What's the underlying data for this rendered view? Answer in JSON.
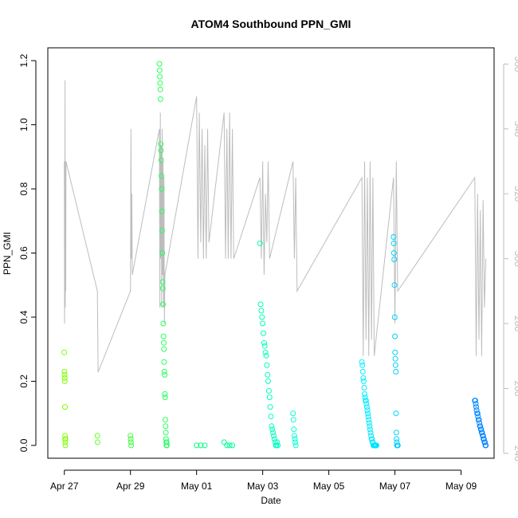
{
  "chart_data": {
    "type": "scatter",
    "title": "ATOM4 Southbound PPN_GMI",
    "xlabel": "Date",
    "ylabel": "PPN_GMI",
    "x_ticks": [
      "Apr 27",
      "Apr 29",
      "May 01",
      "May 03",
      "May 05",
      "May 07",
      "May 09"
    ],
    "y_ticks": [
      "0.0",
      "0.2",
      "0.4",
      "0.6",
      "0.8",
      "1.0",
      "1.2"
    ],
    "y2_ticks": [
      "240",
      "260",
      "280",
      "300",
      "320",
      "340",
      "360"
    ],
    "xlim": [
      "2016-04-26 12:00",
      "2016-05-10 00:00"
    ],
    "ylim": [
      -0.04,
      1.24
    ],
    "y2lim": [
      238.5,
      365
    ],
    "grid": false,
    "legend": "none",
    "colors": {
      "points_start": "#80ff00",
      "points_mid": "#00ff80",
      "points_cyan": "#00ffff",
      "points_end": "#0080ff",
      "secondary_line": "#bdbdbd"
    },
    "series": [
      {
        "kind": "points",
        "x": [
          "2016-04-27 00:00",
          "2016-04-27 00:05",
          "2016-04-27 00:10",
          "2016-04-27 00:15",
          "2016-04-27 00:20",
          "2016-04-27 00:25",
          "2016-04-27 00:30",
          "2016-04-27 00:35",
          "2016-04-27 00:40",
          "2016-04-27 00:45",
          "2016-04-27 00:50",
          "2016-04-28 00:00",
          "2016-04-28 00:10",
          "2016-04-29 00:00",
          "2016-04-29 00:10",
          "2016-04-29 00:20",
          "2016-04-29 00:30",
          "2016-04-29 21:00",
          "2016-04-29 21:10",
          "2016-04-29 21:20",
          "2016-04-29 21:30",
          "2016-04-29 21:40",
          "2016-04-29 21:50",
          "2016-04-29 22:00",
          "2016-04-29 22:10",
          "2016-04-29 22:20",
          "2016-04-29 22:30",
          "2016-04-29 22:40",
          "2016-04-29 22:50",
          "2016-04-29 23:00",
          "2016-04-29 23:10",
          "2016-04-29 23:20",
          "2016-04-29 23:30",
          "2016-04-29 23:40",
          "2016-04-29 23:50",
          "2016-04-30 00:00",
          "2016-04-30 00:10",
          "2016-04-30 00:20",
          "2016-04-30 00:30",
          "2016-04-30 00:40",
          "2016-04-30 00:50",
          "2016-04-30 01:00",
          "2016-04-30 01:10",
          "2016-04-30 01:20",
          "2016-04-30 01:30",
          "2016-04-30 01:40",
          "2016-04-30 01:50",
          "2016-04-30 02:00",
          "2016-04-30 02:10",
          "2016-04-30 02:20",
          "2016-04-30 02:30",
          "2016-05-01 00:00",
          "2016-05-01 03:00",
          "2016-05-01 06:00",
          "2016-05-01 20:00",
          "2016-05-01 22:00",
          "2016-05-02 00:00",
          "2016-05-02 02:00",
          "2016-05-02 22:00",
          "2016-05-02 22:30",
          "2016-05-02 23:00",
          "2016-05-02 23:30",
          "2016-05-03 00:00",
          "2016-05-03 00:30",
          "2016-05-03 01:00",
          "2016-05-03 01:30",
          "2016-05-03 02:00",
          "2016-05-03 02:30",
          "2016-05-03 03:00",
          "2016-05-03 03:30",
          "2016-05-03 04:00",
          "2016-05-03 04:30",
          "2016-05-03 05:00",
          "2016-05-03 05:30",
          "2016-05-03 06:00",
          "2016-05-03 06:30",
          "2016-05-03 07:00",
          "2016-05-03 07:30",
          "2016-05-03 08:00",
          "2016-05-03 08:30",
          "2016-05-03 09:00",
          "2016-05-03 09:30",
          "2016-05-03 10:00",
          "2016-05-03 10:30",
          "2016-05-03 11:00",
          "2016-05-03 22:00",
          "2016-05-03 22:20",
          "2016-05-03 22:40",
          "2016-05-03 23:00",
          "2016-05-03 23:20",
          "2016-05-03 23:40",
          "2016-05-04 00:00",
          "2016-05-06 00:00",
          "2016-05-06 00:20",
          "2016-05-06 00:40",
          "2016-05-06 01:00",
          "2016-05-06 01:20",
          "2016-05-06 01:40",
          "2016-05-06 02:00",
          "2016-05-06 02:20",
          "2016-05-06 02:40",
          "2016-05-06 03:00",
          "2016-05-06 03:20",
          "2016-05-06 03:40",
          "2016-05-06 04:00",
          "2016-05-06 04:20",
          "2016-05-06 04:40",
          "2016-05-06 05:00",
          "2016-05-06 05:20",
          "2016-05-06 05:40",
          "2016-05-06 06:00",
          "2016-05-06 06:20",
          "2016-05-06 06:40",
          "2016-05-06 07:00",
          "2016-05-06 07:20",
          "2016-05-06 07:40",
          "2016-05-06 08:00",
          "2016-05-06 08:20",
          "2016-05-06 08:40",
          "2016-05-06 09:00",
          "2016-05-06 09:20",
          "2016-05-06 09:40",
          "2016-05-06 10:00",
          "2016-05-06 10:20",
          "2016-05-06 10:40",
          "2016-05-06 23:00",
          "2016-05-06 23:10",
          "2016-05-06 23:20",
          "2016-05-06 23:30",
          "2016-05-06 23:40",
          "2016-05-06 23:50",
          "2016-05-07 00:00",
          "2016-05-07 00:10",
          "2016-05-07 00:20",
          "2016-05-07 00:30",
          "2016-05-07 00:40",
          "2016-05-07 00:50",
          "2016-05-07 01:00",
          "2016-05-07 01:10",
          "2016-05-07 01:20",
          "2016-05-07 01:30",
          "2016-05-07 01:40",
          "2016-05-07 01:50",
          "2016-05-07 02:00",
          "2016-05-07 02:10",
          "2016-05-09 10:00",
          "2016-05-09 10:20",
          "2016-05-09 10:40",
          "2016-05-09 11:00",
          "2016-05-09 11:20",
          "2016-05-09 11:40",
          "2016-05-09 12:00",
          "2016-05-09 12:20",
          "2016-05-09 12:40",
          "2016-05-09 13:00",
          "2016-05-09 13:20",
          "2016-05-09 13:40",
          "2016-05-09 14:00",
          "2016-05-09 14:20",
          "2016-05-09 14:40",
          "2016-05-09 15:00",
          "2016-05-09 15:20",
          "2016-05-09 15:40",
          "2016-05-09 16:00",
          "2016-05-09 16:20",
          "2016-05-09 16:40",
          "2016-05-09 17:00",
          "2016-05-09 17:20",
          "2016-05-09 17:40",
          "2016-05-09 18:00"
        ],
        "y": [
          0.29,
          0.23,
          0.22,
          0.21,
          0.2,
          0.12,
          0.03,
          0.02,
          0.01,
          0.0,
          0.02,
          0.03,
          0.01,
          0.03,
          0.02,
          0.01,
          0.0,
          1.19,
          1.17,
          1.15,
          1.13,
          1.11,
          1.08,
          0.94,
          0.92,
          0.89,
          0.84,
          0.8,
          0.73,
          0.67,
          0.6,
          0.51,
          0.49,
          0.44,
          0.38,
          0.34,
          0.32,
          0.3,
          0.26,
          0.23,
          0.22,
          0.16,
          0.15,
          0.08,
          0.06,
          0.04,
          0.02,
          0.01,
          0.0,
          0.01,
          0.0,
          0.0,
          0.0,
          0.0,
          0.01,
          0.0,
          0.0,
          0.0,
          0.63,
          0.44,
          0.42,
          0.4,
          0.38,
          0.35,
          0.32,
          0.31,
          0.29,
          0.28,
          0.25,
          0.22,
          0.2,
          0.17,
          0.15,
          0.12,
          0.09,
          0.06,
          0.05,
          0.04,
          0.03,
          0.02,
          0.01,
          0.0,
          0.0,
          0.01,
          0.0,
          0.1,
          0.08,
          0.05,
          0.03,
          0.02,
          0.01,
          0.0,
          0.26,
          0.25,
          0.23,
          0.21,
          0.2,
          0.18,
          0.16,
          0.15,
          0.14,
          0.14,
          0.13,
          0.12,
          0.11,
          0.1,
          0.09,
          0.08,
          0.07,
          0.06,
          0.05,
          0.04,
          0.03,
          0.02,
          0.02,
          0.01,
          0.01,
          0.0,
          0.0,
          0.0,
          0.0,
          0.0,
          0.0,
          0.0,
          0.0,
          0.65,
          0.63,
          0.6,
          0.58,
          0.5,
          0.4,
          0.34,
          0.29,
          0.27,
          0.25,
          0.23,
          0.1,
          0.04,
          0.02,
          0.01,
          0.0,
          0.0,
          0.0,
          0.0,
          0.0,
          0.14,
          0.14,
          0.13,
          0.12,
          0.11,
          0.1,
          0.1,
          0.09,
          0.08,
          0.08,
          0.07,
          0.06,
          0.06,
          0.05,
          0.05,
          0.04,
          0.04,
          0.03,
          0.03,
          0.02,
          0.02,
          0.01,
          0.01,
          0.0,
          0.0
        ]
      },
      {
        "kind": "secondary-line",
        "axis": "right",
        "x": [
          "2016-04-27 00:00",
          "2016-04-27 00:10",
          "2016-04-27 00:20",
          "2016-04-27 00:30",
          "2016-04-27 00:40",
          "2016-04-27 00:50",
          "2016-04-27 01:00",
          "2016-04-27 01:10",
          "2016-04-28 00:00",
          "2016-04-28 00:30",
          "2016-04-29 00:00",
          "2016-04-29 00:20",
          "2016-04-29 00:40",
          "2016-04-29 01:00",
          "2016-04-29 01:20",
          "2016-04-29 21:00",
          "2016-04-29 21:20",
          "2016-04-29 21:40",
          "2016-04-29 22:00",
          "2016-04-29 22:20",
          "2016-04-29 22:40",
          "2016-04-29 23:00",
          "2016-04-29 23:20",
          "2016-04-29 23:40",
          "2016-04-30 00:00",
          "2016-04-30 00:20",
          "2016-04-30 00:40",
          "2016-04-30 01:00",
          "2016-05-01 00:00",
          "2016-05-01 01:00",
          "2016-05-01 02:00",
          "2016-05-01 03:00",
          "2016-05-01 04:00",
          "2016-05-01 05:00",
          "2016-05-01 06:00",
          "2016-05-01 07:00",
          "2016-05-01 08:00",
          "2016-05-01 09:00",
          "2016-05-01 20:00",
          "2016-05-01 21:00",
          "2016-05-01 22:00",
          "2016-05-01 23:00",
          "2016-05-02 00:00",
          "2016-05-02 01:00",
          "2016-05-02 02:00",
          "2016-05-02 03:00",
          "2016-05-02 22:00",
          "2016-05-02 23:00",
          "2016-05-03 00:00",
          "2016-05-03 01:00",
          "2016-05-03 02:00",
          "2016-05-03 03:00",
          "2016-05-03 04:00",
          "2016-05-03 05:00",
          "2016-05-03 22:00",
          "2016-05-03 23:00",
          "2016-05-04 00:00",
          "2016-05-04 01:00",
          "2016-05-06 00:00",
          "2016-05-06 01:00",
          "2016-05-06 02:00",
          "2016-05-06 03:00",
          "2016-05-06 04:00",
          "2016-05-06 05:00",
          "2016-05-06 06:00",
          "2016-05-06 07:00",
          "2016-05-06 08:00",
          "2016-05-06 09:00",
          "2016-05-06 23:00",
          "2016-05-07 00:00",
          "2016-05-07 01:00",
          "2016-05-07 02:00",
          "2016-05-09 10:00",
          "2016-05-09 11:00",
          "2016-05-09 12:00",
          "2016-05-09 13:00",
          "2016-05-09 14:00",
          "2016-05-09 15:00",
          "2016-05-09 16:00",
          "2016-05-09 17:00",
          "2016-05-09 18:00"
        ],
        "y": [
          330,
          280,
          290,
          355,
          285,
          330,
          290,
          330,
          290,
          265,
          290,
          340,
          300,
          320,
          295,
          340,
          285,
          345,
          300,
          335,
          285,
          340,
          295,
          330,
          285,
          325,
          280,
          295,
          350,
          300,
          345,
          305,
          340,
          300,
          335,
          300,
          340,
          305,
          345,
          300,
          340,
          300,
          345,
          300,
          340,
          300,
          325,
          300,
          330,
          295,
          320,
          305,
          330,
          300,
          330,
          300,
          325,
          290,
          325,
          270,
          330,
          275,
          325,
          270,
          330,
          275,
          325,
          270,
          325,
          280,
          330,
          290,
          325,
          270,
          320,
          275,
          315,
          270,
          318,
          285,
          300
        ]
      }
    ]
  }
}
